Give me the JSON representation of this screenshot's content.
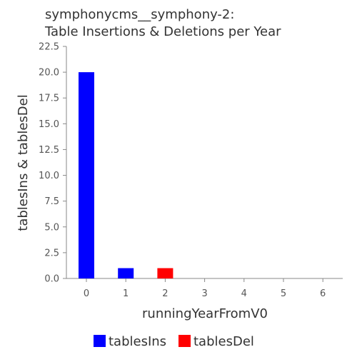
{
  "chart_data": {
    "type": "bar",
    "title": [
      "symphonycms__symphony-2:",
      "Table Insertions & Deletions per Year"
    ],
    "xlabel": "runningYearFromV0",
    "ylabel": "tablesIns & tablesDel",
    "x": [
      0,
      1,
      2,
      3,
      4,
      5,
      6
    ],
    "x_tick_labels": [
      "0",
      "1",
      "2",
      "3",
      "4",
      "5",
      "6"
    ],
    "ylim": [
      0,
      22.5
    ],
    "y_ticks": [
      0,
      2.5,
      5,
      7.5,
      10,
      12.5,
      15,
      17.5,
      20,
      22.5
    ],
    "y_tick_labels": [
      "0.0",
      "2.5",
      "5.0",
      "7.5",
      "10.0",
      "12.5",
      "15.0",
      "17.5",
      "20.0",
      "22.5"
    ],
    "grid": false,
    "legend_position": "bottom",
    "series": [
      {
        "name": "tablesIns",
        "color": "#0000ff",
        "values": [
          20,
          1,
          0,
          0,
          0,
          0,
          0
        ]
      },
      {
        "name": "tablesDel",
        "color": "#ff0000",
        "values": [
          0,
          0,
          1,
          0,
          0,
          0,
          0
        ]
      }
    ]
  }
}
